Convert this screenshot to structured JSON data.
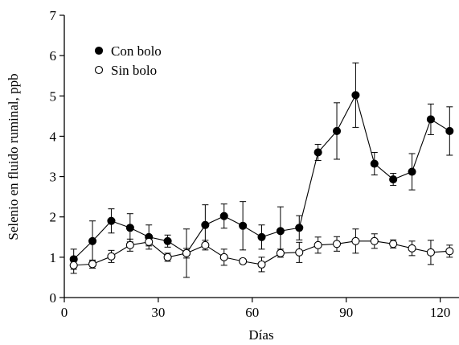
{
  "chart_data": {
    "type": "line",
    "title": "",
    "xlabel": "Días",
    "ylabel": "Selenio en fluido ruminal, ppb",
    "xlim": [
      0,
      126
    ],
    "ylim": [
      0,
      7
    ],
    "xticks": [
      0,
      30,
      60,
      90,
      120
    ],
    "yticks": [
      0,
      1,
      2,
      3,
      4,
      5,
      6,
      7
    ],
    "grid": false,
    "legend": "top-left",
    "series": [
      {
        "name": "Con bolo",
        "marker": "filled-circle",
        "color": "#000000",
        "points": [
          {
            "x": 3,
            "y": 0.95,
            "err": 0.25
          },
          {
            "x": 9,
            "y": 1.4,
            "err": 0.5
          },
          {
            "x": 15,
            "y": 1.9,
            "err": 0.3
          },
          {
            "x": 21,
            "y": 1.73,
            "err": 0.35
          },
          {
            "x": 27,
            "y": 1.5,
            "err": 0.3
          },
          {
            "x": 33,
            "y": 1.4,
            "err": 0.15
          },
          {
            "x": 39,
            "y": 1.1,
            "err": 0.6
          },
          {
            "x": 45,
            "y": 1.8,
            "err": 0.5
          },
          {
            "x": 51,
            "y": 2.02,
            "err": 0.3
          },
          {
            "x": 57,
            "y": 1.78,
            "err": 0.6
          },
          {
            "x": 63,
            "y": 1.5,
            "err": 0.3
          },
          {
            "x": 69,
            "y": 1.65,
            "err": 0.6
          },
          {
            "x": 75,
            "y": 1.73,
            "err": 0.3
          },
          {
            "x": 81,
            "y": 3.6,
            "err": 0.2
          },
          {
            "x": 87,
            "y": 4.13,
            "err": 0.7
          },
          {
            "x": 93,
            "y": 5.02,
            "err": 0.8
          },
          {
            "x": 99,
            "y": 3.32,
            "err": 0.28
          },
          {
            "x": 105,
            "y": 2.93,
            "err": 0.15
          },
          {
            "x": 111,
            "y": 3.12,
            "err": 0.45
          },
          {
            "x": 117,
            "y": 4.42,
            "err": 0.38
          },
          {
            "x": 123,
            "y": 4.13,
            "err": 0.6
          }
        ]
      },
      {
        "name": "Sin bolo",
        "marker": "open-circle",
        "color": "#000000",
        "points": [
          {
            "x": 3,
            "y": 0.8,
            "err": 0.2
          },
          {
            "x": 9,
            "y": 0.83,
            "err": 0.1
          },
          {
            "x": 15,
            "y": 1.02,
            "err": 0.15
          },
          {
            "x": 21,
            "y": 1.3,
            "err": 0.15
          },
          {
            "x": 27,
            "y": 1.38,
            "err": 0.1
          },
          {
            "x": 33,
            "y": 1.0,
            "err": 0.1
          },
          {
            "x": 39,
            "y": 1.1,
            "err": 0.12
          },
          {
            "x": 45,
            "y": 1.3,
            "err": 0.12
          },
          {
            "x": 51,
            "y": 1.0,
            "err": 0.2
          },
          {
            "x": 57,
            "y": 0.9,
            "err": 0.05
          },
          {
            "x": 63,
            "y": 0.82,
            "err": 0.18
          },
          {
            "x": 69,
            "y": 1.1,
            "err": 0.1
          },
          {
            "x": 75,
            "y": 1.12,
            "err": 0.25
          },
          {
            "x": 81,
            "y": 1.3,
            "err": 0.2
          },
          {
            "x": 87,
            "y": 1.33,
            "err": 0.18
          },
          {
            "x": 93,
            "y": 1.4,
            "err": 0.3
          },
          {
            "x": 99,
            "y": 1.4,
            "err": 0.18
          },
          {
            "x": 105,
            "y": 1.33,
            "err": 0.1
          },
          {
            "x": 111,
            "y": 1.22,
            "err": 0.18
          },
          {
            "x": 117,
            "y": 1.12,
            "err": 0.3
          },
          {
            "x": 123,
            "y": 1.15,
            "err": 0.15
          }
        ]
      }
    ]
  }
}
